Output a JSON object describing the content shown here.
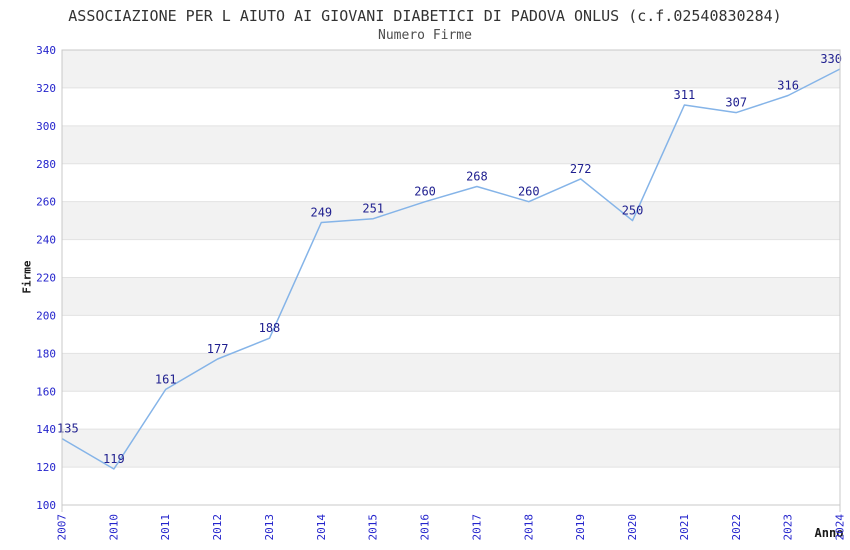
{
  "chart_data": {
    "type": "line",
    "title": "ASSOCIAZIONE PER L AIUTO AI GIOVANI DIABETICI DI PADOVA ONLUS (c.f.02540830284)",
    "subtitle": "Numero Firme",
    "xlabel": "Anno",
    "ylabel": "Firme",
    "categories": [
      "2007",
      "2010",
      "2011",
      "2012",
      "2013",
      "2014",
      "2015",
      "2016",
      "2017",
      "2018",
      "2019",
      "2020",
      "2021",
      "2022",
      "2023",
      "2024"
    ],
    "values": [
      135,
      119,
      161,
      177,
      188,
      249,
      251,
      260,
      268,
      260,
      272,
      250,
      311,
      307,
      316,
      330
    ],
    "ylim": [
      100,
      340
    ],
    "ytick_step": 20,
    "grid": "horizontal-alternating-bands",
    "legend": "none",
    "colors": {
      "line": "#85b4e8",
      "data_label": "#1f1f8f",
      "tick_label": "#2424cc",
      "band": "#f2f2f2",
      "plot_border": "#c8c8c8",
      "grid_line": "#e2e2e2",
      "title": "#333333",
      "subtitle": "#4d4d4d",
      "axis_title": "#1a1a1a"
    }
  }
}
